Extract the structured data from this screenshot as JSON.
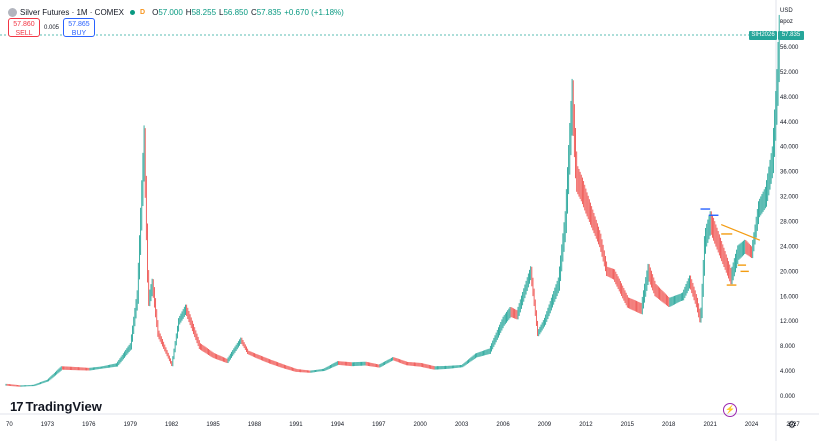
{
  "legend": {
    "symbol": "Silver Futures · 1M · COMEX",
    "badge": "D",
    "open_label": "O",
    "open": "57.000",
    "high_label": "H",
    "high": "58.255",
    "low_label": "L",
    "low": "56.850",
    "close_label": "C",
    "close": "57.835",
    "change": "+0.670 (+1.18%)"
  },
  "trade": {
    "sell_price": "57.860",
    "sell_label": "SELL",
    "spread": "0.005",
    "buy_price": "57.865",
    "buy_label": "BUY"
  },
  "axis_header": {
    "currency": "USD",
    "mode": "вроz"
  },
  "last_price": {
    "ticker": "SIH2026",
    "value": "57.835"
  },
  "brand": {
    "name": "TradingView"
  },
  "colors": {
    "up": "#26a69a",
    "down": "#ef5350",
    "accent_blue": "#2962ff",
    "accent_orange": "#f39c12"
  },
  "chart_data": {
    "type": "line",
    "title": "Silver Futures · 1M · COMEX",
    "ylabel": "USD",
    "xlabel": "",
    "ylim": [
      0,
      58.8
    ],
    "y_ticks": [
      "0.000",
      "4.000",
      "8.000",
      "12.000",
      "16.000",
      "20.000",
      "24.000",
      "28.000",
      "32.000",
      "36.000",
      "40.000",
      "44.000",
      "48.000",
      "52.000",
      "56.000"
    ],
    "x_ticks": [
      "70",
      "1973",
      "1976",
      "1979",
      "1982",
      "1985",
      "1988",
      "1991",
      "1994",
      "1997",
      "2000",
      "2003",
      "2006",
      "2009",
      "2012",
      "2015",
      "2018",
      "2021",
      "2024",
      "2027"
    ],
    "x_tick_years": [
      1970,
      1973,
      1976,
      1979,
      1982,
      1985,
      1988,
      1991,
      1994,
      1997,
      2000,
      2003,
      2006,
      2009,
      2012,
      2015,
      2018,
      2021,
      2024,
      2027
    ],
    "grid": false,
    "series": [
      {
        "x": [
          1970.0,
          1971.0,
          1972.0,
          1973.0,
          1974.0,
          1975.0,
          1976.0,
          1977.0,
          1978.0,
          1979.0,
          1979.5,
          1980.0,
          1980.3,
          1980.6,
          1981.0,
          1982.0,
          1982.5,
          1983.0,
          1984.0,
          1985.0,
          1986.0,
          1987.0,
          1987.5,
          1988.0,
          1989.0,
          1990.0,
          1991.0,
          1992.0,
          1993.0,
          1994.0,
          1995.0,
          1996.0,
          1997.0,
          1998.0,
          1999.0,
          2000.0,
          2001.0,
          2002.0,
          2003.0,
          2004.0,
          2005.0,
          2006.0,
          2006.5,
          2007.0,
          2008.0,
          2008.5,
          2009.0,
          2010.0,
          2010.5,
          2011.0,
          2011.3,
          2011.7,
          2012.0,
          2012.5,
          2013.0,
          2013.5,
          2014.0,
          2015.0,
          2016.0,
          2016.5,
          2017.0,
          2018.0,
          2019.0,
          2019.5,
          2020.0,
          2020.3,
          2020.6,
          2021.0,
          2021.5,
          2022.0,
          2022.5,
          2023.0,
          2023.5,
          2024.0,
          2024.5,
          2025.0,
          2025.5,
          2025.8,
          2026.0
        ],
        "y": [
          1.8,
          1.6,
          1.7,
          2.5,
          4.5,
          4.4,
          4.3,
          4.6,
          5.0,
          8.0,
          16.0,
          41.0,
          15.0,
          18.0,
          10.0,
          5.0,
          12.0,
          14.0,
          8.0,
          6.5,
          5.6,
          9.0,
          7.0,
          6.5,
          5.6,
          4.8,
          4.1,
          3.9,
          4.2,
          5.3,
          5.1,
          5.2,
          4.8,
          6.0,
          5.2,
          5.0,
          4.5,
          4.6,
          4.8,
          6.5,
          7.2,
          12.0,
          13.5,
          13.0,
          20.0,
          10.0,
          12.0,
          18.0,
          28.0,
          48.0,
          35.0,
          33.0,
          31.0,
          28.0,
          25.0,
          20.0,
          19.5,
          15.0,
          14.0,
          20.0,
          17.0,
          15.0,
          16.0,
          18.5,
          15.0,
          12.0,
          25.0,
          28.0,
          25.0,
          22.0,
          19.0,
          23.0,
          24.0,
          23.0,
          30.0,
          32.0,
          38.0,
          48.0,
          57.8
        ]
      }
    ],
    "annotations": {
      "horizontal_levels": [
        {
          "y": 30.0,
          "color": "#2962ff"
        },
        {
          "y": 29.0,
          "color": "#2962ff"
        },
        {
          "y": 26.0,
          "color": "#f39c12"
        },
        {
          "y": 21.0,
          "color": "#f39c12"
        },
        {
          "y": 20.0,
          "color": "#f39c12"
        },
        {
          "y": 17.8,
          "color": "#f39c12"
        }
      ],
      "trendline": {
        "x": [
          2021.8,
          2024.6
        ],
        "y": [
          27.5,
          25.0
        ],
        "color": "#f39c12"
      }
    }
  }
}
